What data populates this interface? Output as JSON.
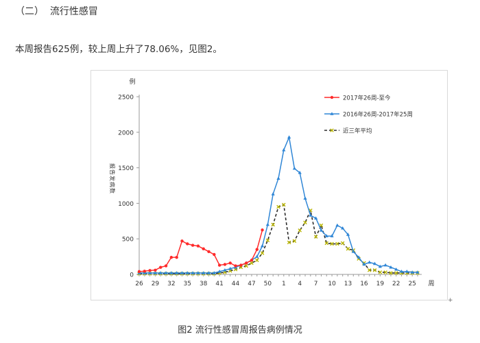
{
  "section": {
    "number": "（二）",
    "title": "流行性感冒"
  },
  "paragraph": {
    "text": "本周报告625例，较上周上升了78.06%，见图2。"
  },
  "caption": {
    "text": "图2 流行性感冒周报告病例情况"
  },
  "chart_data": {
    "type": "line",
    "title": "",
    "ylabel": "报告发病数",
    "y_unit": "例",
    "x_unit": "周",
    "ylim": [
      0,
      2500
    ],
    "yticks": [
      0,
      500,
      1000,
      1500,
      2000,
      2500
    ],
    "grid": false,
    "legend_position": "top-right",
    "x_labels": [
      "26",
      "29",
      "32",
      "35",
      "38",
      "41",
      "44",
      "47",
      "50",
      "1",
      "4",
      "7",
      "10",
      "13",
      "16",
      "19",
      "22",
      "25"
    ],
    "series": [
      {
        "name": "2017年26周-至今",
        "color": "#ff2a2a",
        "marker": "circle",
        "dash": "solid",
        "values": [
          40,
          45,
          55,
          60,
          100,
          120,
          240,
          240,
          470,
          430,
          410,
          400,
          360,
          320,
          280,
          130,
          140,
          160,
          120,
          130,
          160,
          200,
          351,
          625
        ]
      },
      {
        "name": "2016年26周-2017年25周",
        "color": "#2f86d6",
        "marker": "triangle",
        "dash": "solid",
        "values": [
          20,
          20,
          20,
          20,
          20,
          20,
          20,
          20,
          20,
          20,
          20,
          20,
          20,
          20,
          20,
          40,
          60,
          80,
          100,
          130,
          160,
          200,
          250,
          400,
          700,
          1130,
          1350,
          1750,
          1930,
          1490,
          1430,
          1070,
          830,
          790,
          620,
          540,
          540,
          690,
          650,
          560,
          320,
          240,
          140,
          170,
          150,
          110,
          130,
          100,
          70,
          40,
          40,
          30,
          30
        ]
      },
      {
        "name": "近三年平均",
        "color": "#2b2b2b",
        "marker_color": "#b8b400",
        "marker": "x",
        "dash": "dashed",
        "values": [
          10,
          10,
          10,
          10,
          10,
          10,
          10,
          10,
          10,
          10,
          10,
          10,
          10,
          10,
          10,
          20,
          30,
          50,
          70,
          100,
          120,
          160,
          200,
          300,
          480,
          700,
          950,
          980,
          450,
          470,
          620,
          730,
          900,
          530,
          690,
          440,
          430,
          430,
          440,
          360,
          340,
          220,
          160,
          60,
          60,
          30,
          30,
          20,
          20,
          20,
          20,
          20,
          20
        ]
      }
    ]
  }
}
